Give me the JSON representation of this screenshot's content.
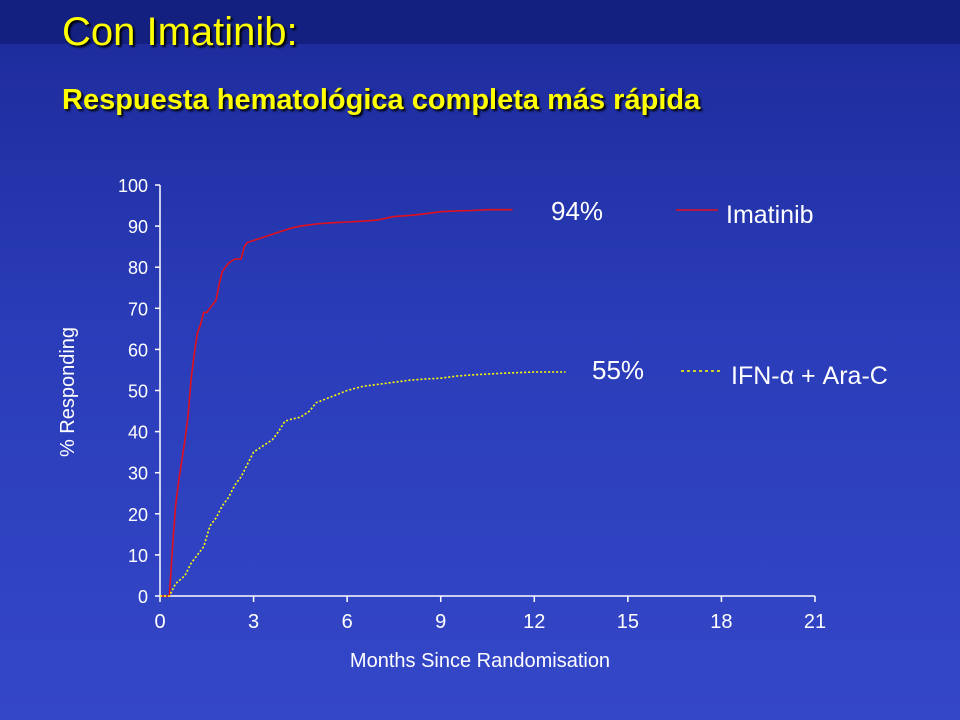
{
  "header": {
    "title": "Con Imatinib:",
    "subtitle_bold": "Respuesta hematológica",
    "subtitle_rest": " completa más rápida"
  },
  "colors": {
    "title": "#ffff00",
    "background": "#2a3cb8",
    "axis": "#ffffff",
    "imatinib": "#e0101e",
    "ifn": "#ffff00"
  },
  "chart_data": {
    "type": "line",
    "xlabel": "Months Since Randomisation",
    "ylabel": "% Responding",
    "xlim": [
      0,
      21
    ],
    "ylim": [
      0,
      100
    ],
    "xticks": [
      0,
      3,
      6,
      9,
      12,
      15,
      18,
      21
    ],
    "yticks": [
      0,
      10,
      20,
      30,
      40,
      50,
      60,
      70,
      80,
      90,
      100
    ],
    "grid": false,
    "legend_position": "right",
    "series": [
      {
        "name": "Imatinib",
        "style": "solid",
        "end_label": "94%",
        "x": [
          0,
          0.3,
          0.4,
          0.5,
          0.6,
          0.7,
          0.8,
          0.9,
          1.0,
          1.1,
          1.2,
          1.3,
          1.4,
          1.5,
          1.6,
          1.7,
          1.8,
          1.9,
          2.0,
          2.1,
          2.2,
          2.3,
          2.4,
          2.5,
          2.6,
          2.7,
          2.8,
          3.0,
          3.2,
          3.4,
          3.6,
          3.8,
          4.0,
          4.2,
          4.5,
          5.0,
          5.5,
          6.0,
          6.5,
          7.0,
          7.5,
          8.0,
          8.5,
          9.0,
          9.5,
          10.0,
          10.5,
          11.0,
          11.3
        ],
        "y": [
          0,
          0,
          12,
          22,
          28,
          33,
          38,
          44,
          53,
          59,
          64,
          66,
          69,
          69,
          70,
          71,
          72,
          76,
          79,
          80,
          81,
          81.5,
          82,
          82,
          82,
          85,
          86,
          86.5,
          87,
          87.5,
          88,
          88.5,
          89,
          89.5,
          90,
          90.5,
          90.8,
          91,
          91.2,
          91.5,
          92.3,
          92.6,
          93,
          93.5,
          93.7,
          93.8,
          94,
          94,
          94
        ]
      },
      {
        "name": "IFN-α + Ara-C",
        "style": "dashed",
        "end_label": "55%",
        "x": [
          0,
          0.3,
          0.5,
          0.8,
          1.0,
          1.2,
          1.4,
          1.6,
          1.8,
          2.0,
          2.2,
          2.4,
          2.6,
          2.8,
          3.0,
          3.2,
          3.4,
          3.6,
          3.8,
          4.0,
          4.2,
          4.5,
          4.8,
          5.0,
          5.5,
          6.0,
          6.5,
          7.0,
          7.5,
          8.0,
          8.5,
          9.0,
          9.5,
          10.0,
          10.5,
          11.0,
          12.0,
          13.0
        ],
        "y": [
          0,
          0,
          3,
          5,
          8,
          10,
          12,
          17,
          19,
          22,
          24,
          27,
          29,
          32,
          35,
          36,
          37,
          38,
          40,
          42.5,
          43,
          43.5,
          45,
          47,
          48.5,
          50,
          51,
          51.5,
          52,
          52.5,
          52.8,
          53,
          53.5,
          53.8,
          54,
          54.2,
          54.5,
          54.5
        ]
      }
    ]
  }
}
